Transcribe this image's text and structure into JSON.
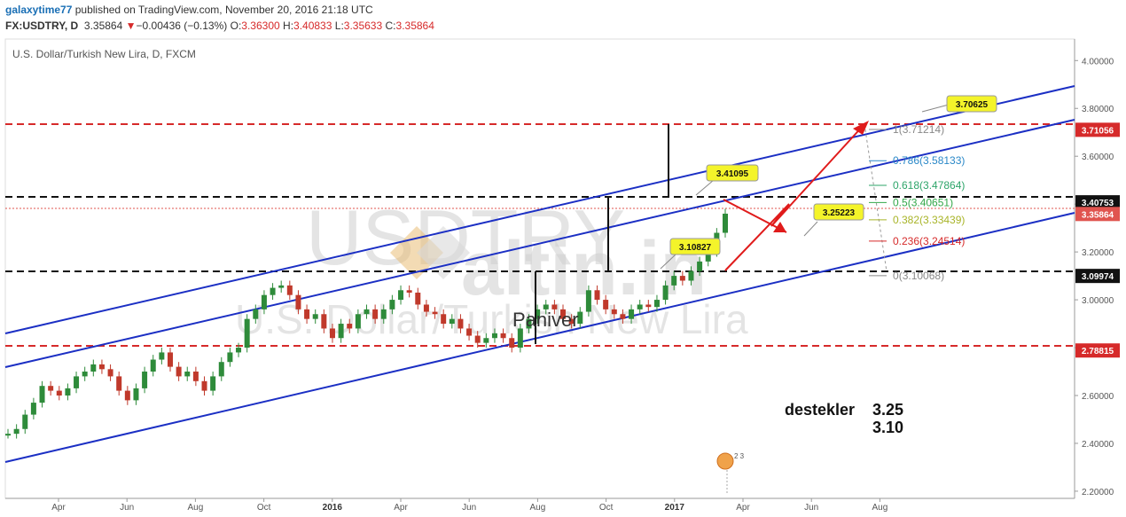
{
  "header": {
    "author": "galaxytime77",
    "published_text": "published on TradingView.com, November 20, 2016 21:18 UTC",
    "symbol": "FX:USDTRY, D",
    "last_price": "3.35864",
    "change_arrow": "▼",
    "change": "−0.00436 (−0.13%)",
    "open_label": "O:",
    "open_value": "3.36300",
    "high_label": "H:",
    "high_value": "3.40833",
    "low_label": "L:",
    "low_value": "3.35633",
    "close_label": "C:",
    "close_value": "3.35864"
  },
  "chart_title": "U.S. Dollar/Turkish New Lira, D, FXCM",
  "watermark": {
    "symbol": "USDTRY",
    "description": "U.S. Dollar/Turkish New Lira",
    "brand": "altin.in"
  },
  "overlay_text": "Paniver",
  "note": {
    "label": "destekler",
    "value1": "3.25",
    "value2": "3.10"
  },
  "price_labels": [
    {
      "value": "3.71056",
      "color": "#d62a2a",
      "text_color": "#ffffff"
    },
    {
      "value": "3.40753",
      "color": "#111111",
      "text_color": "#ffffff"
    },
    {
      "value": "3.35864",
      "color": "#e0544f",
      "text_color": "#ffffff"
    },
    {
      "value": "3.09974",
      "color": "#111111",
      "text_color": "#ffffff"
    },
    {
      "value": "2.78815",
      "color": "#d62a2a",
      "text_color": "#ffffff"
    }
  ],
  "callouts": [
    "3.70625",
    "3.41095",
    "3.25223",
    "3.10827"
  ],
  "fib_levels": [
    {
      "ratio": "1",
      "value": "3.71214",
      "color": "#888888"
    },
    {
      "ratio": "0.786",
      "value": "3.58133",
      "color": "#2a88c8"
    },
    {
      "ratio": "0.618",
      "value": "3.47864",
      "color": "#2ea56a"
    },
    {
      "ratio": "0.5",
      "value": "3.40651",
      "color": "#33a84a"
    },
    {
      "ratio": "0.382",
      "value": "3.33439",
      "color": "#a8b428"
    },
    {
      "ratio": "0.236",
      "value": "3.24514",
      "color": "#d62a2a"
    },
    {
      "ratio": "0",
      "value": "3.10068",
      "color": "#888888"
    }
  ],
  "colors": {
    "channel": "#1b2fc4",
    "resistance_dashed": "#d62a2a",
    "level_dashed": "#111111",
    "arrow": "#e01b1b",
    "callout_fill": "#f4f42a",
    "bull_candle": "#2e8b3a",
    "bear_candle": "#c0392b"
  },
  "chart_data": {
    "type": "line",
    "title": "U.S. Dollar/Turkish New Lira, D, FXCM",
    "ylim": [
      2.17,
      4.09
    ],
    "y_ticks": [
      "4.00000",
      "3.80000",
      "3.60000",
      "3.40000",
      "3.20000",
      "3.00000",
      "2.80000",
      "2.60000",
      "2.40000",
      "2.20000"
    ],
    "x_ticks": [
      "Apr",
      "Jun",
      "Aug",
      "Oct",
      "2016",
      "Apr",
      "Jun",
      "Aug",
      "Oct",
      "2017",
      "Apr",
      "Jun",
      "Aug"
    ],
    "grid": false,
    "series": [
      {
        "values": [
          2.44,
          2.46,
          2.52,
          2.57,
          2.64,
          2.62,
          2.6,
          2.63,
          2.68,
          2.7,
          2.73,
          2.71,
          2.68,
          2.62,
          2.58,
          2.63,
          2.7,
          2.75,
          2.78,
          2.72,
          2.68,
          2.7,
          2.66,
          2.62,
          2.68,
          2.74,
          2.78,
          2.8,
          2.92,
          2.96,
          3.02,
          3.05,
          3.06,
          3.02,
          2.96,
          2.92,
          2.94,
          2.88,
          2.84,
          2.9,
          2.88,
          2.94,
          2.96,
          2.92,
          2.96,
          3.0,
          3.04,
          3.03,
          2.98,
          2.95,
          2.94,
          2.9,
          2.92,
          2.88,
          2.85,
          2.82,
          2.84,
          2.86,
          2.84,
          2.8,
          2.88,
          2.92,
          2.96,
          2.98,
          2.96,
          2.92,
          2.9,
          2.95,
          3.04,
          3.0,
          2.96,
          2.94,
          2.92,
          2.96,
          2.98,
          2.97,
          3.0,
          3.06,
          3.1,
          3.08,
          3.12,
          3.16,
          3.2,
          3.28,
          3.36
        ]
      }
    ]
  }
}
